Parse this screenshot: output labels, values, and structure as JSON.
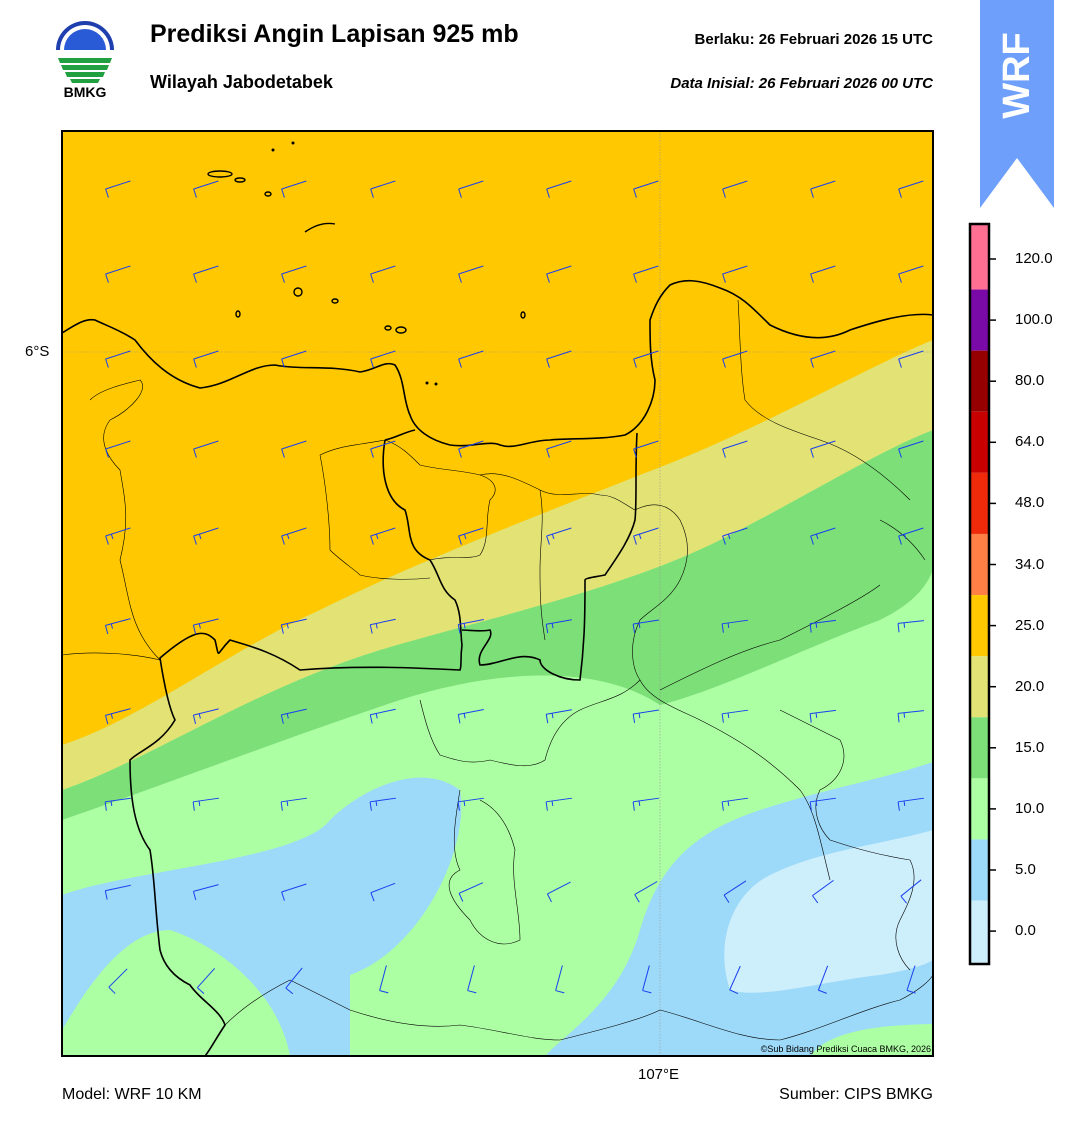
{
  "header": {
    "title": "Prediksi Angin Lapisan 925 mb",
    "subtitle": "Wilayah Jabodetabek",
    "valid_label": "Berlaku:  26 Februari 2026 15 UTC",
    "init_label": "Data Inisial:  26 Februari 2026 00 UTC",
    "logo_text": "BMKG",
    "badge_text": "WRF"
  },
  "map": {
    "lat_label": "6°S",
    "lon_label": "107°E",
    "copyright": "©Sub Bidang Prediksi Cuaca BMKG, 2026",
    "wind_field": "uniform west-southwesterly barbs, stronger to the north",
    "colors": {
      "c0": "#ffffff",
      "c5": "#cdeefb",
      "c10": "#9dd9f9",
      "c15": "#adffa3",
      "c20": "#7ddf78",
      "c25": "#e3e274",
      "c34": "#ffc800",
      "barb": "#1a3ff0"
    }
  },
  "colorbar": {
    "labels": [
      "120.0",
      "100.0",
      "80.0",
      "64.0",
      "48.0",
      "34.0",
      "25.0",
      "20.0",
      "15.0",
      "10.0",
      "5.0",
      "0.0"
    ],
    "colors": [
      "#ffffff",
      "#cdeefb",
      "#9dd9f9",
      "#adffa3",
      "#7ddf78",
      "#e3e274",
      "#ffc800",
      "#ff7f45",
      "#ee2a0a",
      "#c80000",
      "#960000",
      "#7a0aa8",
      "#ff6f91"
    ]
  },
  "footer": {
    "model": "Model: WRF 10 KM",
    "source": "Sumber: CIPS BMKG"
  }
}
